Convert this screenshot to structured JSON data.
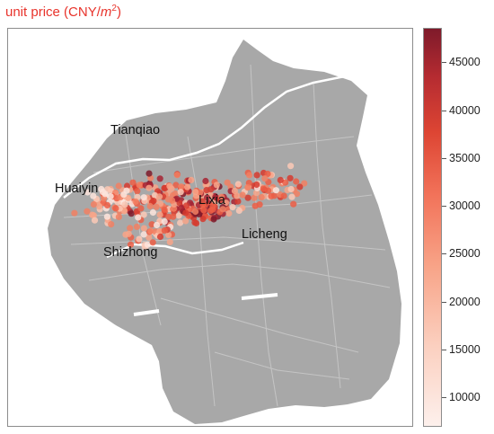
{
  "title": {
    "prefix": "unit price (CNY/",
    "unit": "m",
    "exponent": "2",
    "suffix": ")"
  },
  "districts": [
    {
      "name": "Tianqiao"
    },
    {
      "name": "Huaiyin"
    },
    {
      "name": "Lixia"
    },
    {
      "name": "Licheng"
    },
    {
      "name": "Shizhong"
    }
  ],
  "colorbar": {
    "min": 7000,
    "max": 48500,
    "ticks": [
      "10000",
      "15000",
      "20000",
      "25000",
      "30000",
      "35000",
      "40000",
      "45000"
    ],
    "color_low": "#fdf0ec",
    "color_high": "#7e1a2a"
  },
  "colors": {
    "title": "#e8332b",
    "land": "#a8a8a8",
    "roads": "#c8c8c8"
  }
}
